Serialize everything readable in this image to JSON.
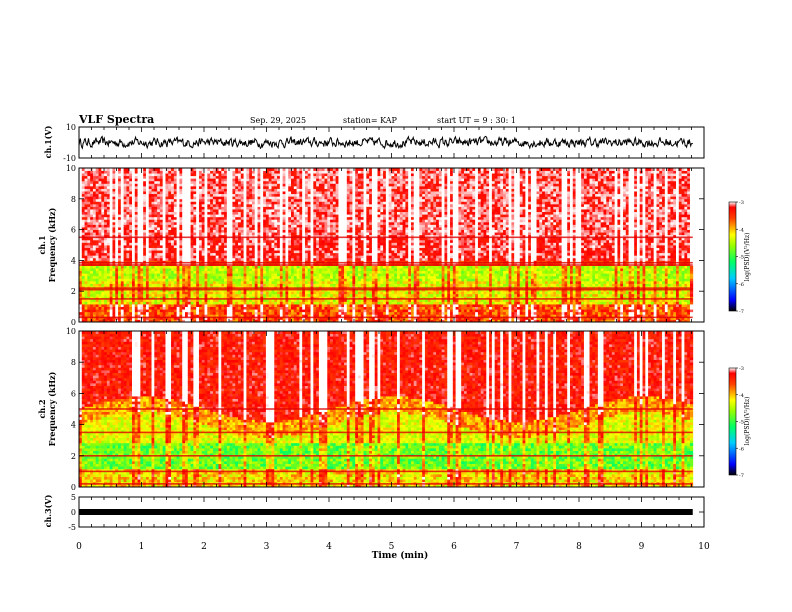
{
  "header": {
    "title": "VLF Spectra",
    "date": "Sep. 29, 2025",
    "station": "station= KAP",
    "start": "start  UT =  9 : 30: 1"
  },
  "chart_data": [
    {
      "type": "line",
      "panel": "ch1-waveform",
      "ylabel": "ch.1(V)",
      "ylim": [
        -10,
        10
      ],
      "yticks": [
        10,
        -10
      ],
      "xlim": [
        0,
        10
      ],
      "series": [
        {
          "values_note_free": true,
          "amplitude_range": [
            -4,
            4
          ]
        }
      ]
    },
    {
      "type": "heatmap",
      "panel": "ch1-spectrogram",
      "ylabel": "ch.1\nFrequency (kHz)",
      "ylabel_line1": "ch.1",
      "ylabel_line2": "Frequency (kHz)",
      "ylim": [
        0,
        10
      ],
      "yticks": [
        0,
        2,
        4,
        6,
        8,
        10
      ],
      "xlim": [
        0,
        10
      ],
      "colorbar": {
        "label": "log(PSD)(V²/Hz)",
        "range": [
          -7,
          -3
        ],
        "ticks": [
          -3,
          -4,
          -5,
          -6,
          -7
        ]
      }
    },
    {
      "type": "heatmap",
      "panel": "ch2-spectrogram",
      "ylabel_line1": "ch.2",
      "ylabel_line2": "Frequency (kHz)",
      "ylim": [
        0,
        10
      ],
      "yticks": [
        0,
        2,
        4,
        6,
        8,
        10
      ],
      "xlim": [
        0,
        10
      ],
      "colorbar": {
        "label": "log(PSD)(V²/Hz)",
        "range": [
          -7,
          -3
        ],
        "ticks": [
          -3,
          -4,
          -5,
          -6,
          -7
        ]
      }
    },
    {
      "type": "line",
      "panel": "ch3-waveform",
      "ylabel": "ch.3(V)",
      "ylim": [
        -5,
        5
      ],
      "yticks": [
        5,
        0,
        -5
      ],
      "xlim": [
        0,
        10
      ],
      "xlabel": "Time (min)",
      "xticks": [
        0,
        1,
        2,
        3,
        4,
        5,
        6,
        7,
        8,
        9,
        10
      ]
    }
  ],
  "colors": {
    "ink": "#000000",
    "colormap": [
      "#000080",
      "#0000ff",
      "#00aaff",
      "#00ffc0",
      "#33ff33",
      "#aaff00",
      "#ffff00",
      "#ff8000",
      "#ff0000",
      "#ffffff"
    ]
  }
}
